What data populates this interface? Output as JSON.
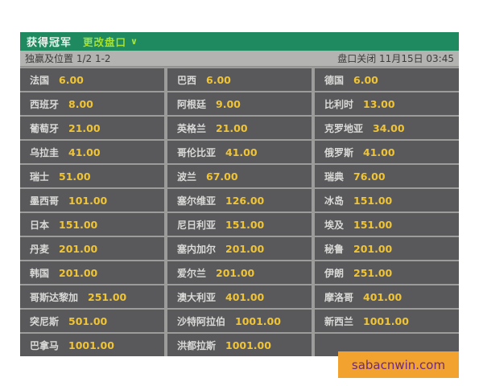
{
  "header": {
    "title": "获得冠军",
    "change_market_label": "更改盘口"
  },
  "icons": {
    "chevron_down": "∨"
  },
  "subheader": {
    "market_type": "独赢及位置 1/2 1-2",
    "close_info": "盘口关闭 11月15日 03:45"
  },
  "odds_table": {
    "rows": [
      [
        {
          "team": "法国",
          "odds": "6.00"
        },
        {
          "team": "巴西",
          "odds": "6.00"
        },
        {
          "team": "德国",
          "odds": "6.00"
        }
      ],
      [
        {
          "team": "西班牙",
          "odds": "8.00"
        },
        {
          "team": "阿根廷",
          "odds": "9.00"
        },
        {
          "team": "比利时",
          "odds": "13.00"
        }
      ],
      [
        {
          "team": "葡萄牙",
          "odds": "21.00"
        },
        {
          "team": "英格兰",
          "odds": "21.00"
        },
        {
          "team": "克罗地亚",
          "odds": "34.00"
        }
      ],
      [
        {
          "team": "乌拉圭",
          "odds": "41.00"
        },
        {
          "team": "哥伦比亚",
          "odds": "41.00"
        },
        {
          "team": "俄罗斯",
          "odds": "41.00"
        }
      ],
      [
        {
          "team": "瑞士",
          "odds": "51.00"
        },
        {
          "team": "波兰",
          "odds": "67.00"
        },
        {
          "team": "瑞典",
          "odds": "76.00"
        }
      ],
      [
        {
          "team": "墨西哥",
          "odds": "101.00"
        },
        {
          "team": "塞尔维亚",
          "odds": "126.00"
        },
        {
          "team": "冰岛",
          "odds": "151.00"
        }
      ],
      [
        {
          "team": "日本",
          "odds": "151.00"
        },
        {
          "team": "尼日利亚",
          "odds": "151.00"
        },
        {
          "team": "埃及",
          "odds": "151.00"
        }
      ],
      [
        {
          "team": "丹麦",
          "odds": "201.00"
        },
        {
          "team": "塞内加尔",
          "odds": "201.00"
        },
        {
          "team": "秘鲁",
          "odds": "201.00"
        }
      ],
      [
        {
          "team": "韩国",
          "odds": "201.00"
        },
        {
          "team": "爱尔兰",
          "odds": "201.00"
        },
        {
          "team": "伊朗",
          "odds": "251.00"
        }
      ],
      [
        {
          "team": "哥斯达黎加",
          "odds": "251.00"
        },
        {
          "team": "澳大利亚",
          "odds": "401.00"
        },
        {
          "team": "摩洛哥",
          "odds": "401.00"
        }
      ],
      [
        {
          "team": "突尼斯",
          "odds": "501.00"
        },
        {
          "team": "沙特阿拉伯",
          "odds": "1001.00"
        },
        {
          "team": "新西兰",
          "odds": "1001.00"
        }
      ],
      [
        {
          "team": "巴拿马",
          "odds": "1001.00"
        },
        {
          "team": "洪都拉斯",
          "odds": "1001.00"
        },
        {
          "team": "",
          "odds": ""
        }
      ]
    ]
  },
  "watermark": {
    "text": "sabacnwin.com"
  },
  "colors": {
    "header_green": "#1f8a60",
    "change_market_lime": "#a8e22a",
    "subheader_gray": "#b3b3b1",
    "cell_gray": "#59595b",
    "odds_gold": "#f0c435",
    "team_text": "#d9d9d7",
    "banner_orange": "#f2a22e",
    "banner_text": "#6d2a7e"
  }
}
